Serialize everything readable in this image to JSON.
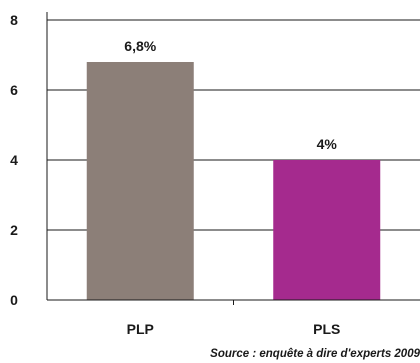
{
  "chart_data": {
    "type": "bar",
    "categories": [
      "PLP",
      "PLS"
    ],
    "values": [
      6.8,
      4
    ],
    "data_labels": [
      "6,8%",
      "4%"
    ],
    "colors": [
      "#8c7f78",
      "#a52a8e"
    ],
    "ylim": [
      0,
      8
    ],
    "yticks": [
      "0",
      "2",
      "4",
      "6",
      "8"
    ],
    "ytick_values": [
      0,
      2,
      4,
      6,
      8
    ],
    "grid": true,
    "source": "Source : enquête à dire d'experts 2009"
  }
}
